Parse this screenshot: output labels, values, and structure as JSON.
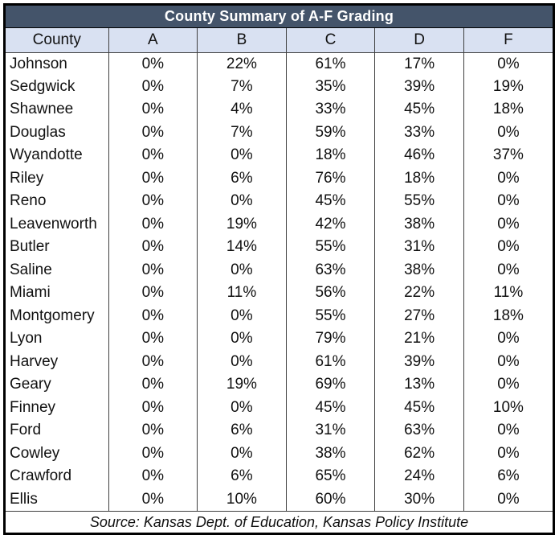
{
  "colors": {
    "title_bg": "#44546A",
    "title_text": "#FFFFFF",
    "header_row_bg": "#D9E1F2",
    "outer_border": "#000000",
    "grid_line": "#3F3F3F",
    "body_text": "#111111"
  },
  "chart_data": {
    "type": "table",
    "title": "County Summary of A-F Grading",
    "columns": [
      "County",
      "A",
      "B",
      "C",
      "D",
      "F"
    ],
    "rows": [
      [
        "Johnson",
        "0%",
        "22%",
        "61%",
        "17%",
        "0%"
      ],
      [
        "Sedgwick",
        "0%",
        "7%",
        "35%",
        "39%",
        "19%"
      ],
      [
        "Shawnee",
        "0%",
        "4%",
        "33%",
        "45%",
        "18%"
      ],
      [
        "Douglas",
        "0%",
        "7%",
        "59%",
        "33%",
        "0%"
      ],
      [
        "Wyandotte",
        "0%",
        "0%",
        "18%",
        "46%",
        "37%"
      ],
      [
        "Riley",
        "0%",
        "6%",
        "76%",
        "18%",
        "0%"
      ],
      [
        "Reno",
        "0%",
        "0%",
        "45%",
        "55%",
        "0%"
      ],
      [
        "Leavenworth",
        "0%",
        "19%",
        "42%",
        "38%",
        "0%"
      ],
      [
        "Butler",
        "0%",
        "14%",
        "55%",
        "31%",
        "0%"
      ],
      [
        "Saline",
        "0%",
        "0%",
        "63%",
        "38%",
        "0%"
      ],
      [
        "Miami",
        "0%",
        "11%",
        "56%",
        "22%",
        "11%"
      ],
      [
        "Montgomery",
        "0%",
        "0%",
        "55%",
        "27%",
        "18%"
      ],
      [
        "Lyon",
        "0%",
        "0%",
        "79%",
        "21%",
        "0%"
      ],
      [
        "Harvey",
        "0%",
        "0%",
        "61%",
        "39%",
        "0%"
      ],
      [
        "Geary",
        "0%",
        "19%",
        "69%",
        "13%",
        "0%"
      ],
      [
        "Finney",
        "0%",
        "0%",
        "45%",
        "45%",
        "10%"
      ],
      [
        "Ford",
        "0%",
        "6%",
        "31%",
        "63%",
        "0%"
      ],
      [
        "Cowley",
        "0%",
        "0%",
        "38%",
        "62%",
        "0%"
      ],
      [
        "Crawford",
        "0%",
        "6%",
        "65%",
        "24%",
        "6%"
      ],
      [
        "Ellis",
        "0%",
        "10%",
        "60%",
        "30%",
        "0%"
      ]
    ],
    "source_note": "Source: Kansas Dept. of Education, Kansas Policy Institute",
    "layout": {
      "header_position": "top",
      "row_gridlines": false,
      "column_gridlines": true
    }
  }
}
